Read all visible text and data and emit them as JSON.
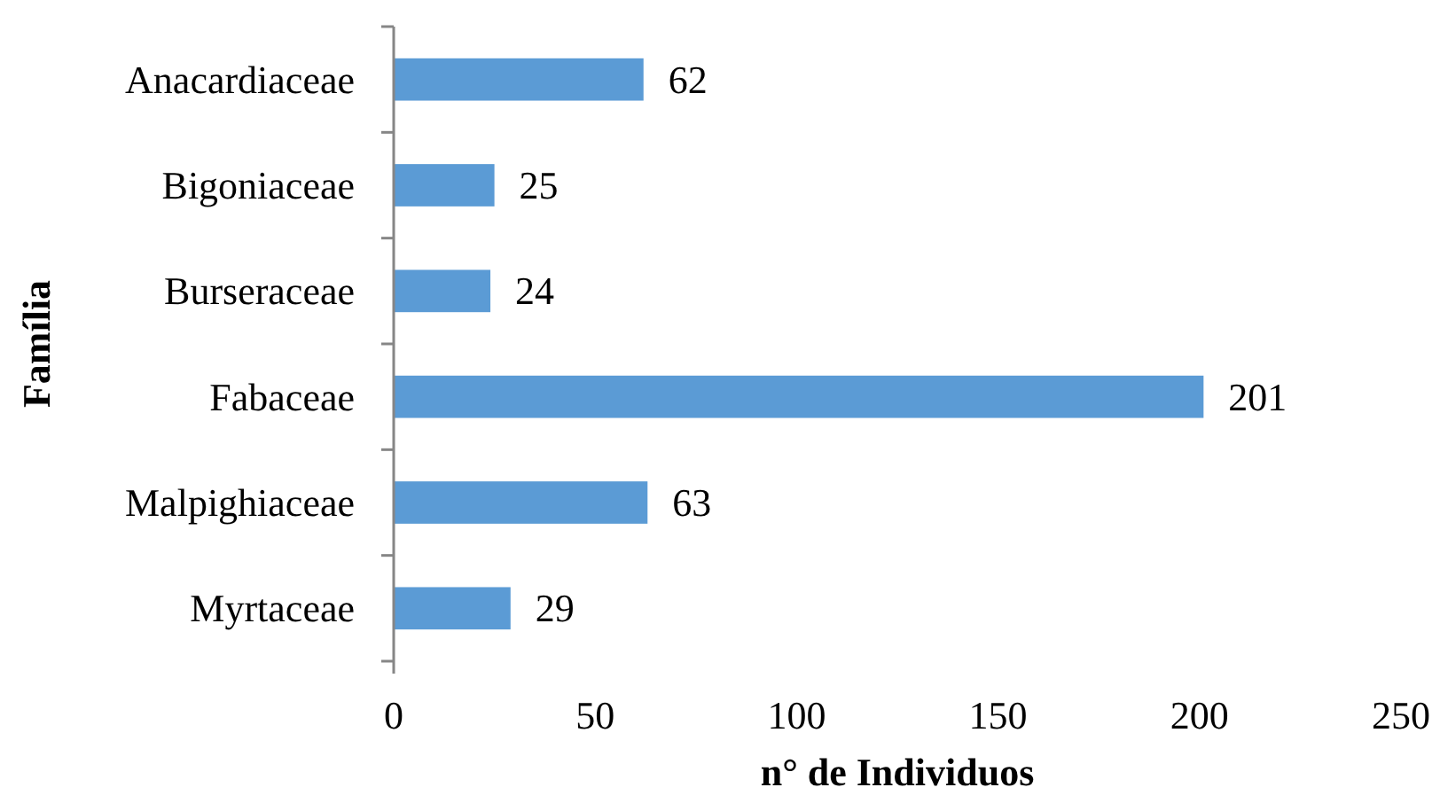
{
  "chart_data": {
    "type": "bar",
    "orientation": "horizontal",
    "xlabel": "n° de Individuos",
    "ylabel": "Família",
    "categories": [
      "Anacardiaceae",
      "Bigoniaceae",
      "Burseraceae",
      "Fabaceae",
      "Malpighiaceae",
      "Myrtaceae"
    ],
    "values": [
      62,
      25,
      24,
      201,
      63,
      29
    ],
    "color": "#5b9bd5",
    "data_labels": true,
    "xlim": [
      0,
      250
    ],
    "xticks": [
      0,
      50,
      100,
      150,
      200,
      250
    ],
    "grid": false
  }
}
